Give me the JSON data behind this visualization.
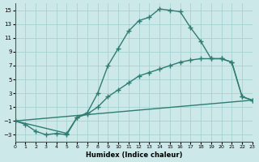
{
  "xlabel": "Humidex (Indice chaleur)",
  "xlim": [
    0,
    23
  ],
  "ylim": [
    -4,
    16
  ],
  "yticks": [
    -3,
    -1,
    1,
    3,
    5,
    7,
    9,
    11,
    13,
    15
  ],
  "xticks": [
    0,
    1,
    2,
    3,
    4,
    5,
    6,
    7,
    8,
    9,
    10,
    11,
    12,
    13,
    14,
    15,
    16,
    17,
    18,
    19,
    20,
    21,
    22,
    23
  ],
  "background_color": "#cde8e8",
  "line_color": "#2e7d72",
  "series1_x": [
    0,
    1,
    2,
    3,
    4,
    5,
    6,
    7,
    8,
    9,
    10,
    11,
    12,
    13,
    14,
    15,
    16,
    17,
    18,
    19,
    20,
    21,
    22,
    23
  ],
  "series1_y": [
    -1,
    -1.5,
    -2.5,
    -3,
    -2.8,
    -3,
    -0.5,
    0.2,
    3.0,
    7.0,
    9.5,
    12.0,
    13.5,
    14.0,
    15.2,
    15.0,
    14.8,
    12.5,
    10.5,
    8.0,
    8.0,
    7.5,
    2.5,
    2.0
  ],
  "series2_x": [
    0,
    5,
    6,
    7,
    8,
    9,
    10,
    11,
    12,
    13,
    14,
    15,
    16,
    17,
    18,
    19,
    20,
    21,
    22,
    23
  ],
  "series2_y": [
    -1,
    -2.8,
    -0.5,
    0.0,
    1.0,
    2.5,
    3.5,
    4.5,
    5.5,
    6.0,
    6.5,
    7.0,
    7.5,
    7.8,
    8.0,
    8.0,
    8.0,
    7.5,
    2.5,
    2.0
  ],
  "series3_x": [
    0,
    23
  ],
  "series3_y": [
    -1,
    2.0
  ]
}
